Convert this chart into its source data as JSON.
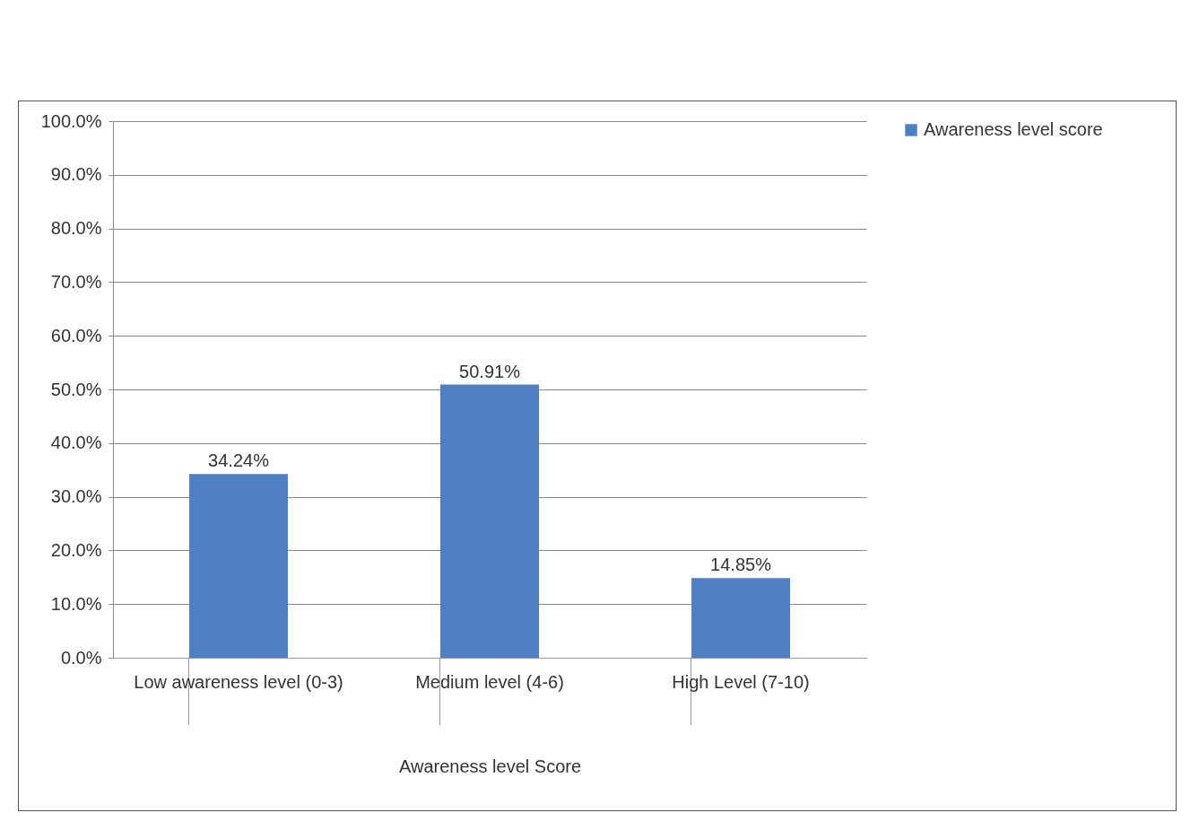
{
  "chart_data": {
    "type": "bar",
    "xlabel": "Awareness level Score",
    "categories": [
      "Low awareness level (0-3)",
      "Medium level (4-6)",
      "High Level (7-10)"
    ],
    "series": [
      {
        "name": "Awareness level score",
        "color": "#4f7fc4",
        "values": [
          34.24,
          50.91,
          14.85
        ],
        "value_labels": [
          "34.24%",
          "50.91%",
          "14.85%"
        ]
      }
    ],
    "ylim": [
      0,
      100
    ],
    "yticks": [
      {
        "value": 0,
        "label": "0.0%"
      },
      {
        "value": 10,
        "label": "10.0%"
      },
      {
        "value": 20,
        "label": "20.0%"
      },
      {
        "value": 30,
        "label": "30.0%"
      },
      {
        "value": 40,
        "label": "40.0%"
      },
      {
        "value": 50,
        "label": "50.0%"
      },
      {
        "value": 60,
        "label": "60.0%"
      },
      {
        "value": 70,
        "label": "70.0%"
      },
      {
        "value": 80,
        "label": "80.0%"
      },
      {
        "value": 90,
        "label": "90.0%"
      },
      {
        "value": 100,
        "label": "100.0%"
      }
    ],
    "grid": "y",
    "legend": "right"
  }
}
